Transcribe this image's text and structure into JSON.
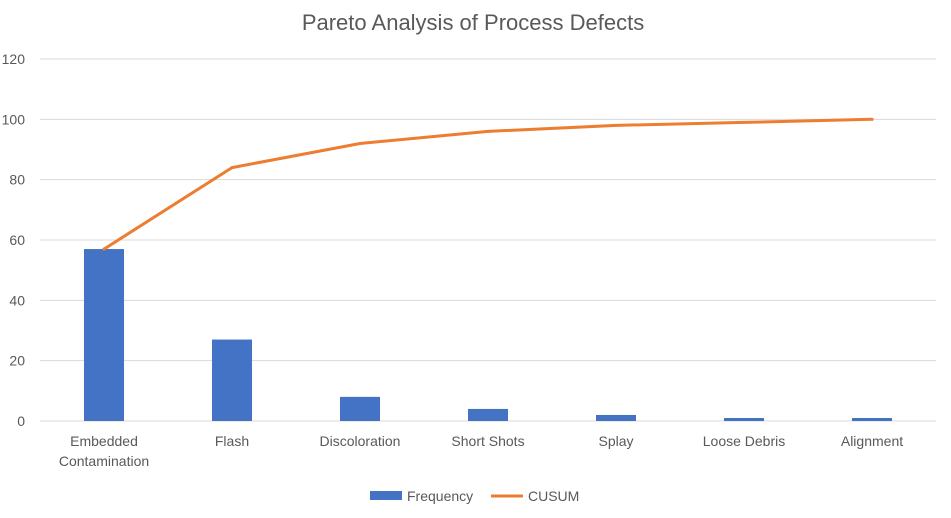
{
  "chart_data": {
    "type": "bar",
    "title": "Pareto Analysis of Process Defects",
    "categories": [
      [
        "Embedded",
        "Contamination"
      ],
      [
        "Flash"
      ],
      [
        "Discoloration"
      ],
      [
        "Short Shots"
      ],
      [
        "Splay"
      ],
      [
        "Loose Debris"
      ],
      [
        "Alignment"
      ]
    ],
    "series": [
      {
        "name": "Frequency",
        "kind": "bar",
        "color": "#4472C4",
        "values": [
          57,
          27,
          8,
          4,
          2,
          1,
          1
        ]
      },
      {
        "name": "CUSUM",
        "kind": "line",
        "color": "#ED7D31",
        "values": [
          57,
          84,
          92,
          96,
          98,
          99,
          100
        ]
      }
    ],
    "ylim": [
      0,
      120
    ],
    "yticks": [
      0,
      20,
      40,
      60,
      80,
      100,
      120
    ],
    "grid": true,
    "legend": "bottom",
    "xlabel": "",
    "ylabel": ""
  }
}
